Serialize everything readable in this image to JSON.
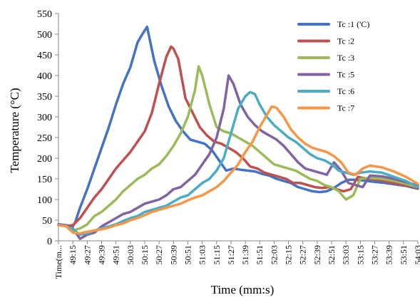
{
  "chart_data": {
    "type": "line",
    "title": "",
    "xlabel": "Time (mm:s)",
    "ylabel": "Temperature (°C)",
    "ylim": [
      0,
      550
    ],
    "yticks": [
      0,
      50,
      100,
      150,
      200,
      250,
      300,
      350,
      400,
      450,
      500,
      550
    ],
    "x_tick_labels": [
      "Time(m...",
      "49:15",
      "49:27",
      "49:39",
      "49:51",
      "50:03",
      "50:15",
      "50:27",
      "50:39",
      "50:51",
      "51:03",
      "51:15",
      "51:27",
      "51:39",
      "51:51",
      "52:03",
      "52:15",
      "52:27",
      "52:39",
      "52:51",
      "53:03",
      "53:15",
      "53:27",
      "53:39",
      "53:51",
      "54:03"
    ],
    "x_units": "seconds elapsed from 49:03",
    "xlim": [
      0,
      300
    ],
    "grid": false,
    "legend_position": "top-right",
    "series": [
      {
        "name": "Tc :1 ('C)",
        "color": "#4472C4",
        "x": [
          0,
          6,
          12,
          14,
          18,
          24,
          30,
          36,
          42,
          48,
          54,
          60,
          66,
          70,
          74,
          80,
          86,
          92,
          98,
          104,
          110,
          116,
          122,
          128,
          134,
          140,
          146,
          152,
          158,
          164,
          170,
          176,
          182,
          188,
          194,
          200,
          206,
          212,
          218,
          224,
          230,
          236,
          242,
          248,
          254,
          260,
          270,
          280,
          290,
          300
        ],
        "y": [
          40,
          38,
          35,
          45,
          80,
          125,
          175,
          225,
          275,
          330,
          380,
          420,
          480,
          500,
          518,
          435,
          375,
          325,
          290,
          265,
          245,
          240,
          235,
          220,
          195,
          170,
          175,
          172,
          170,
          168,
          162,
          158,
          150,
          145,
          140,
          130,
          125,
          120,
          118,
          120,
          128,
          140,
          148,
          148,
          146,
          144,
          141,
          137,
          133,
          126
        ]
      },
      {
        "name": "Tc :2",
        "color": "#C0504D",
        "x": [
          0,
          6,
          12,
          18,
          24,
          30,
          36,
          42,
          48,
          54,
          60,
          66,
          72,
          78,
          84,
          90,
          94,
          96,
          100,
          106,
          112,
          118,
          124,
          130,
          136,
          142,
          148,
          154,
          160,
          166,
          172,
          178,
          184,
          190,
          196,
          202,
          208,
          214,
          220,
          226,
          232,
          238,
          244,
          250,
          254,
          260,
          270,
          280,
          290,
          300
        ],
        "y": [
          38,
          36,
          38,
          55,
          80,
          105,
          125,
          150,
          175,
          195,
          215,
          240,
          265,
          310,
          380,
          445,
          470,
          465,
          440,
          345,
          310,
          275,
          255,
          240,
          235,
          225,
          215,
          200,
          180,
          175,
          165,
          160,
          155,
          150,
          140,
          140,
          135,
          130,
          128,
          130,
          125,
          120,
          125,
          155,
          152,
          150,
          146,
          140,
          134,
          128
        ]
      },
      {
        "name": "Tc :3",
        "color": "#9BBB59",
        "x": [
          0,
          6,
          12,
          18,
          24,
          30,
          36,
          42,
          48,
          54,
          60,
          66,
          72,
          78,
          84,
          90,
          96,
          102,
          108,
          114,
          117,
          120,
          126,
          132,
          138,
          144,
          150,
          156,
          162,
          168,
          174,
          180,
          186,
          192,
          198,
          204,
          210,
          216,
          222,
          228,
          234,
          240,
          246,
          252,
          260,
          270,
          280,
          290,
          300
        ],
        "y": [
          38,
          36,
          25,
          30,
          40,
          60,
          70,
          85,
          100,
          120,
          135,
          150,
          160,
          175,
          185,
          205,
          230,
          260,
          300,
          365,
          422,
          400,
          330,
          275,
          265,
          260,
          250,
          240,
          230,
          215,
          200,
          185,
          180,
          175,
          170,
          160,
          150,
          145,
          135,
          130,
          120,
          100,
          110,
          150,
          152,
          150,
          145,
          138,
          130
        ]
      },
      {
        "name": "Tc :5",
        "color": "#8064A2",
        "x": [
          0,
          6,
          12,
          18,
          24,
          30,
          36,
          42,
          48,
          54,
          60,
          66,
          72,
          78,
          84,
          90,
          96,
          102,
          108,
          114,
          120,
          126,
          132,
          138,
          142,
          146,
          152,
          158,
          164,
          170,
          176,
          182,
          188,
          194,
          200,
          206,
          212,
          218,
          224,
          230,
          236,
          242,
          248,
          254,
          260,
          270,
          280,
          290,
          300
        ],
        "y": [
          38,
          36,
          30,
          5,
          15,
          20,
          35,
          45,
          55,
          65,
          70,
          80,
          90,
          95,
          100,
          110,
          125,
          130,
          145,
          160,
          185,
          210,
          250,
          320,
          400,
          380,
          330,
          300,
          280,
          265,
          255,
          245,
          230,
          210,
          190,
          175,
          170,
          165,
          160,
          190,
          170,
          140,
          135,
          130,
          158,
          156,
          150,
          142,
          134
        ]
      },
      {
        "name": "Tc :6",
        "color": "#4BACC6",
        "x": [
          0,
          6,
          12,
          18,
          24,
          30,
          36,
          42,
          48,
          54,
          60,
          66,
          72,
          78,
          84,
          90,
          96,
          102,
          108,
          114,
          120,
          126,
          132,
          138,
          144,
          150,
          156,
          160,
          164,
          168,
          174,
          180,
          186,
          192,
          198,
          204,
          210,
          216,
          222,
          228,
          234,
          240,
          246,
          252,
          260,
          270,
          280,
          290,
          300
        ],
        "y": [
          38,
          36,
          28,
          15,
          18,
          25,
          30,
          35,
          40,
          48,
          55,
          60,
          70,
          75,
          80,
          85,
          95,
          105,
          110,
          125,
          140,
          150,
          170,
          200,
          260,
          320,
          350,
          360,
          355,
          330,
          300,
          280,
          265,
          250,
          240,
          225,
          210,
          200,
          195,
          185,
          170,
          165,
          160,
          165,
          168,
          165,
          155,
          145,
          130
        ]
      },
      {
        "name": "Tc :7",
        "color": "#F79646",
        "x": [
          0,
          6,
          12,
          18,
          24,
          30,
          36,
          42,
          48,
          54,
          60,
          66,
          72,
          78,
          84,
          90,
          96,
          102,
          108,
          114,
          120,
          126,
          132,
          138,
          144,
          150,
          156,
          162,
          168,
          174,
          178,
          182,
          188,
          194,
          200,
          206,
          212,
          218,
          224,
          230,
          236,
          242,
          248,
          254,
          260,
          270,
          280,
          290,
          300
        ],
        "y": [
          38,
          36,
          20,
          18,
          22,
          25,
          28,
          32,
          38,
          42,
          50,
          55,
          62,
          70,
          75,
          80,
          85,
          90,
          98,
          105,
          110,
          120,
          130,
          145,
          165,
          185,
          215,
          240,
          275,
          305,
          325,
          322,
          300,
          270,
          250,
          235,
          225,
          220,
          215,
          205,
          190,
          165,
          160,
          175,
          182,
          178,
          168,
          155,
          138
        ]
      }
    ]
  }
}
